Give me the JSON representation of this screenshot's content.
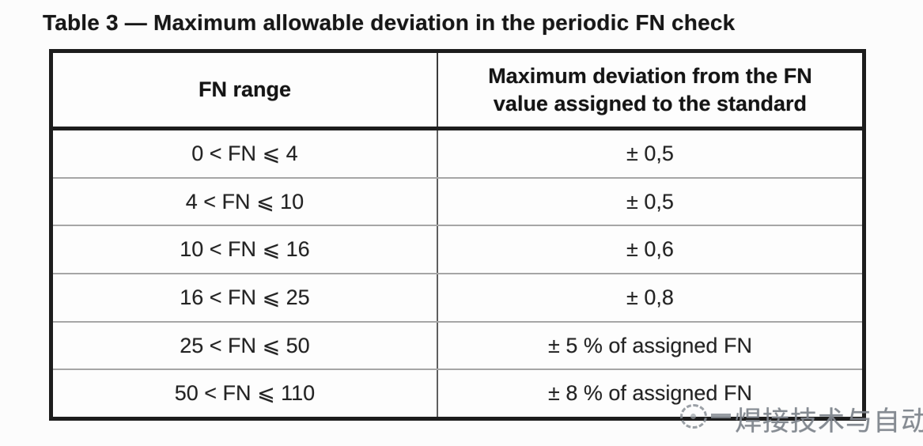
{
  "title": "Table 3 — Maximum allowable deviation in the periodic FN check",
  "table": {
    "header": {
      "range_label": "FN range",
      "deviation_lines": [
        "Maximum deviation from the FN",
        "value assigned to the standard"
      ]
    },
    "rows": [
      {
        "range": "0 < FN ⩽ 4",
        "deviation": "± 0,5"
      },
      {
        "range": "4 < FN ⩽ 10",
        "deviation": "± 0,5"
      },
      {
        "range": "10 < FN ⩽ 16",
        "deviation": "± 0,6"
      },
      {
        "range": "16 < FN ⩽ 25",
        "deviation": "± 0,8"
      },
      {
        "range": "25 < FN ⩽ 50",
        "deviation": "± 5 % of assigned FN"
      },
      {
        "range": "50 < FN ⩽ 110",
        "deviation": "± 8 % of assigned FN"
      }
    ]
  },
  "watermark": {
    "text": "焊接技术与自动化",
    "icon": "dashed-circle-logo",
    "color": "#8a9097"
  },
  "colors": {
    "background": "#fcfcfc",
    "border_dark": "#1d1d1d",
    "row_separator": "#a6a6a6",
    "column_divider": "#5f5f5f",
    "text": "#232323",
    "watermark_gray": "#8a9097"
  }
}
